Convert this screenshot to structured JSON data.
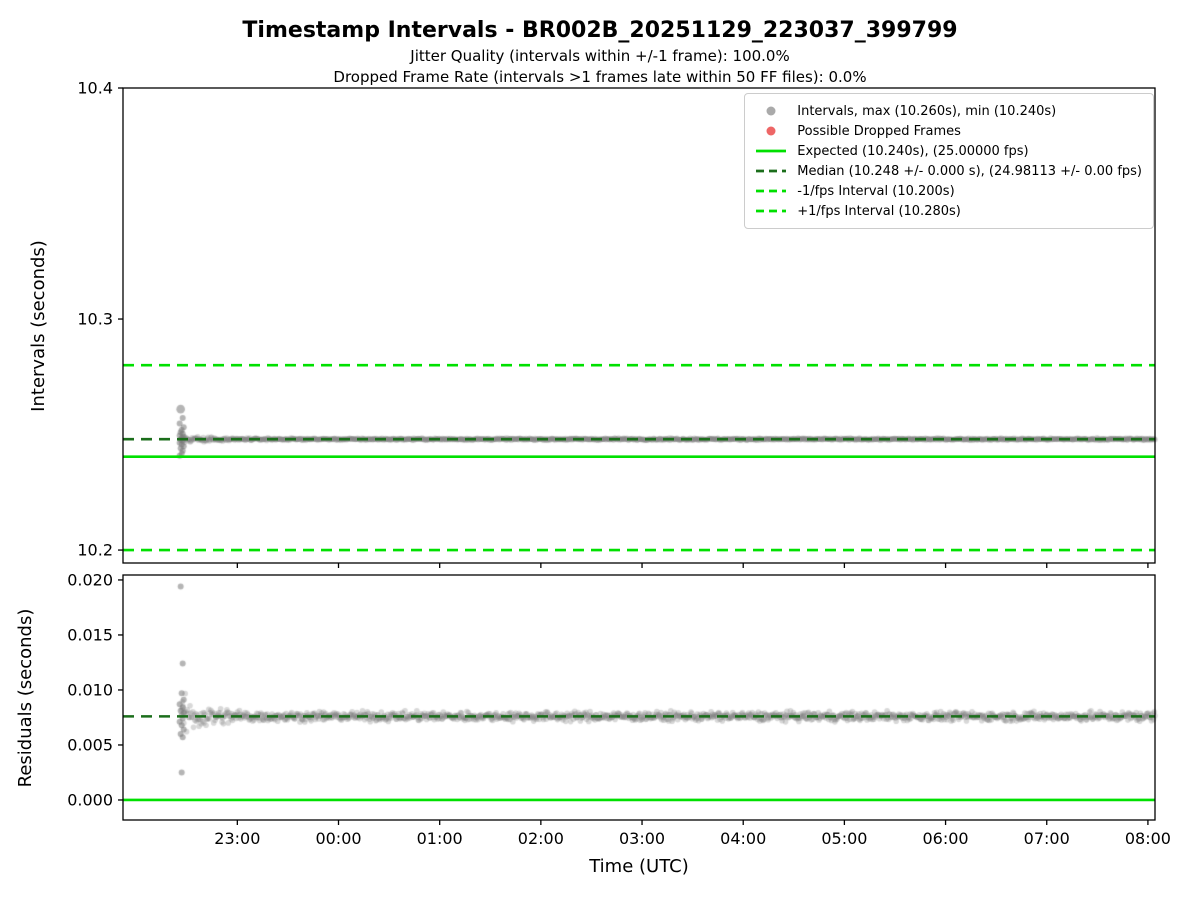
{
  "title": "Timestamp Intervals - BR002B_20251129_223037_399799",
  "subtitles": [
    "Jitter Quality (intervals within +/-1 frame): 100.0%",
    "Dropped Frame Rate (intervals >1 frames late within 50 FF files): 0.0%"
  ],
  "xlabel": "Time (UTC)",
  "colors": {
    "lime": "#00e000",
    "dark_green": "#1b6e1b",
    "scatter_gray": "rgba(127,127,127,0.30)",
    "cluster_gray": "rgba(120,120,120,0.55)",
    "legend_gray": "#aaaaaa",
    "dropped_red": "#ee6666",
    "spine": "#000000",
    "legend_border": "#cccccc"
  },
  "chart_data": [
    {
      "type": "scatter",
      "name": "intervals",
      "ylabel": "Intervals (seconds)",
      "ylim": [
        10.1944,
        10.4
      ],
      "yticks": [
        {
          "v": 10.2,
          "label": "10.2"
        },
        {
          "v": 10.3,
          "label": "10.3"
        },
        {
          "v": 10.4,
          "label": "10.4"
        }
      ],
      "xlim_hours_from_2200": [
        -0.13,
        10.07
      ],
      "xticks": [
        {
          "v": 1,
          "label": "23:00"
        },
        {
          "v": 2,
          "label": "00:00"
        },
        {
          "v": 3,
          "label": "01:00"
        },
        {
          "v": 4,
          "label": "02:00"
        },
        {
          "v": 5,
          "label": "03:00"
        },
        {
          "v": 6,
          "label": "04:00"
        },
        {
          "v": 7,
          "label": "05:00"
        },
        {
          "v": 8,
          "label": "06:00"
        },
        {
          "v": 9,
          "label": "07:00"
        },
        {
          "v": 10,
          "label": "08:00"
        }
      ],
      "show_x_labels": false,
      "band": {
        "x_start": 0.45,
        "x_end": 10.07,
        "center": 10.248,
        "sigma": 0.0002,
        "start_sigma_extra": 0.0007,
        "decay": 4,
        "n_points": 1400
      },
      "big_point": [
        0.44,
        10.261
      ],
      "cluster_points": [
        [
          0.46,
          10.2572
        ],
        [
          0.43,
          10.2548
        ],
        [
          0.47,
          10.2532
        ],
        [
          0.45,
          10.252
        ],
        [
          0.44,
          10.251
        ],
        [
          0.46,
          10.2503
        ],
        [
          0.43,
          10.2496
        ],
        [
          0.47,
          10.249
        ],
        [
          0.45,
          10.2484
        ],
        [
          0.44,
          10.2478
        ],
        [
          0.46,
          10.2472
        ],
        [
          0.43,
          10.2465
        ],
        [
          0.45,
          10.2457
        ],
        [
          0.47,
          10.2449
        ],
        [
          0.44,
          10.2441
        ],
        [
          0.46,
          10.243
        ],
        [
          0.45,
          10.2418
        ],
        [
          0.43,
          10.2408
        ]
      ],
      "ref_lines": [
        {
          "name": "plus-1fps-interval",
          "y": 10.28,
          "style": "dashed",
          "color_key": "lime"
        },
        {
          "name": "median",
          "y": 10.248,
          "style": "dashed",
          "color_key": "dark_green"
        },
        {
          "name": "expected",
          "y": 10.2404,
          "style": "solid",
          "color_key": "lime"
        },
        {
          "name": "minus-1fps-interval",
          "y": 10.2,
          "style": "dashed",
          "color_key": "lime"
        }
      ],
      "legend": [
        {
          "label": "Intervals, max (10.260s), min (10.240s)",
          "marker": "dot",
          "color_key": "legend_gray"
        },
        {
          "label": "Possible Dropped Frames",
          "marker": "dot",
          "color_key": "dropped_red"
        },
        {
          "label": "Expected (10.240s), (25.00000 fps)",
          "marker": "solid-line",
          "color_key": "lime"
        },
        {
          "label": "Median (10.248 +/- 0.000 s), (24.98113 +/- 0.00 fps)",
          "marker": "dashed-line",
          "color_key": "dark_green"
        },
        {
          "label": "-1/fps Interval (10.200s)",
          "marker": "dashed-line",
          "color_key": "lime"
        },
        {
          "label": "+1/fps Interval (10.280s)",
          "marker": "dashed-line",
          "color_key": "lime"
        }
      ]
    },
    {
      "type": "scatter",
      "name": "residuals",
      "ylabel": "Residuals (seconds)",
      "ylim": [
        -0.00182,
        0.02045
      ],
      "yticks": [
        {
          "v": 0.0,
          "label": "0.000"
        },
        {
          "v": 0.005,
          "label": "0.005"
        },
        {
          "v": 0.01,
          "label": "0.010"
        },
        {
          "v": 0.015,
          "label": "0.015"
        },
        {
          "v": 0.02,
          "label": "0.020"
        }
      ],
      "xlim_hours_from_2200": [
        -0.13,
        10.07
      ],
      "xticks": [
        {
          "v": 1,
          "label": "23:00"
        },
        {
          "v": 2,
          "label": "00:00"
        },
        {
          "v": 3,
          "label": "01:00"
        },
        {
          "v": 4,
          "label": "02:00"
        },
        {
          "v": 5,
          "label": "03:00"
        },
        {
          "v": 6,
          "label": "04:00"
        },
        {
          "v": 7,
          "label": "05:00"
        },
        {
          "v": 8,
          "label": "06:00"
        },
        {
          "v": 9,
          "label": "07:00"
        },
        {
          "v": 10,
          "label": "08:00"
        }
      ],
      "show_x_labels": true,
      "band": {
        "x_start": 0.45,
        "x_end": 10.07,
        "center": 0.0076,
        "sigma": 0.0002,
        "start_sigma_extra": 0.0008,
        "decay": 4,
        "n_points": 1400
      },
      "cluster_points": [
        [
          0.44,
          0.0194
        ],
        [
          0.46,
          0.0124
        ],
        [
          0.45,
          0.0097
        ],
        [
          0.47,
          0.0091
        ],
        [
          0.43,
          0.0087
        ],
        [
          0.46,
          0.0084
        ],
        [
          0.44,
          0.0081
        ],
        [
          0.47,
          0.0079
        ],
        [
          0.45,
          0.0077
        ],
        [
          0.46,
          0.0074
        ],
        [
          0.43,
          0.0071
        ],
        [
          0.45,
          0.0068
        ],
        [
          0.47,
          0.0064
        ],
        [
          0.44,
          0.006
        ],
        [
          0.46,
          0.0057
        ],
        [
          0.45,
          0.0025
        ]
      ],
      "ref_lines": [
        {
          "name": "median-residual",
          "y": 0.0076,
          "style": "dashed",
          "color_key": "dark_green"
        },
        {
          "name": "zero-residual",
          "y": 0.0,
          "style": "solid",
          "color_key": "lime"
        }
      ]
    }
  ]
}
